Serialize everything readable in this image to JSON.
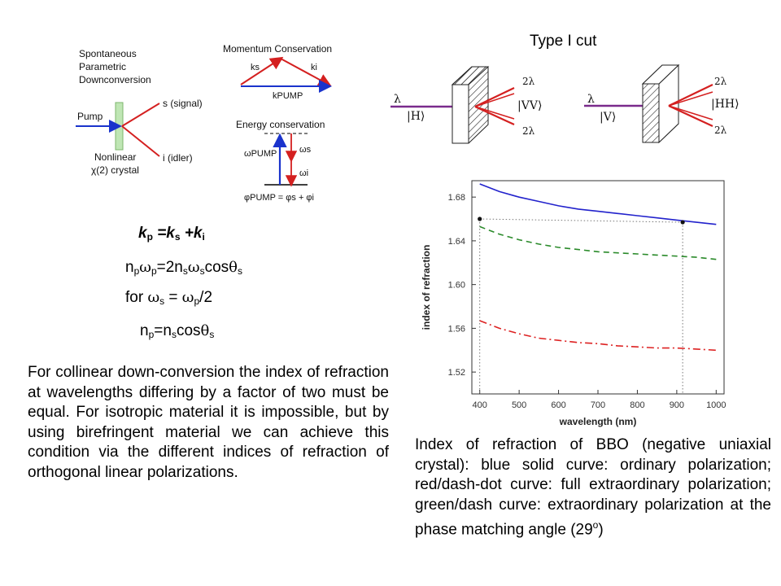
{
  "type_cut_title": "Type I cut",
  "spdc": {
    "title_lines": [
      "Spontaneous",
      "Parametric",
      "Downconversion"
    ],
    "pump": "Pump",
    "signal": "s (signal)",
    "idler": "i (idler)",
    "crystal_lines": [
      "Nonlinear",
      "χ(2) crystal"
    ],
    "momentum_title": "Momentum Conservation",
    "ks": "ks",
    "ki": "ki",
    "kpump": "kPUMP",
    "energy_title": "Energy conservation",
    "omega_pump": "ωPUMP",
    "omega_s": "ωs",
    "omega_i": "ωi",
    "phase_eq": "φPUMP = φs + φi"
  },
  "crystals": {
    "left": {
      "in_lambda": "λ",
      "in_state": "|H⟩",
      "out_state": "|VV⟩",
      "out_top": "2λ",
      "out_bottom": "2λ"
    },
    "right": {
      "in_lambda": "λ",
      "in_state": "|V⟩",
      "out_state": "|HH⟩",
      "out_top": "2λ",
      "out_bottom": "2λ"
    }
  },
  "equations": {
    "eq1": {
      "k": "k",
      "p": "p",
      "eqks": " =k",
      "s": "s",
      "plus": " +k",
      "i": "i"
    },
    "eq2": {
      "n1": "n",
      "p1": "p",
      "w1": "ω",
      "p2": "p",
      "rest": "=2n",
      "s1": "s",
      "w2": "ω",
      "s2": "s",
      "cos": "cos",
      "th": "θ",
      "s3": "s"
    },
    "eq3": {
      "for": "for ",
      "w1": "ω",
      "s": "s",
      "eq": " = ",
      "w2": "ω",
      "p": "p",
      "div": "/2"
    },
    "eq4": {
      "n1": "n",
      "p": "p",
      "eq": "=n",
      "s1": "s",
      "cos": "cos",
      "th": "θ",
      "s2": "s"
    }
  },
  "left_paragraph": "For collinear down-conversion the index of refraction at wavelengths differing by a factor of two must be equal. For isotropic material it is impossible, but by using birefringent material we can achieve this condition via the different indices of refraction of orthogonal linear polarizations.",
  "right_paragraph": {
    "text": "Index of refraction of BBO (negative uniaxial crystal): blue solid curve: ordinary polarization; red/dash-dot curve: full extraordinary polarization; green/dash curve: extraordinary polarization at the phase matching angle (29",
    "sup": "o",
    "tail": ")"
  },
  "chart_data": {
    "type": "line",
    "xlabel": "wavelength (nm)",
    "ylabel": "index of refraction",
    "xlim": [
      380,
      1020
    ],
    "ylim": [
      1.5,
      1.695
    ],
    "x_ticks": [
      400,
      500,
      600,
      700,
      800,
      900,
      1000
    ],
    "y_ticks": [
      1.52,
      1.56,
      1.6,
      1.64,
      1.68
    ],
    "grid": false,
    "series": [
      {
        "style": "solid",
        "color": "#2222cc",
        "x": [
          400,
          450,
          500,
          550,
          600,
          650,
          700,
          750,
          800,
          850,
          900,
          950,
          1000
        ],
        "y": [
          1.692,
          1.685,
          1.68,
          1.676,
          1.672,
          1.669,
          1.667,
          1.665,
          1.663,
          1.661,
          1.659,
          1.657,
          1.655
        ]
      },
      {
        "style": "dash",
        "color": "#2a8a2a",
        "x": [
          400,
          450,
          500,
          550,
          600,
          650,
          700,
          750,
          800,
          850,
          900,
          950,
          1000
        ],
        "y": [
          1.653,
          1.646,
          1.641,
          1.637,
          1.634,
          1.632,
          1.63,
          1.629,
          1.628,
          1.627,
          1.626,
          1.625,
          1.623
        ]
      },
      {
        "style": "dashdot",
        "color": "#dd2222",
        "x": [
          400,
          450,
          500,
          550,
          600,
          650,
          700,
          750,
          800,
          850,
          900,
          950,
          1000
        ],
        "y": [
          1.567,
          1.56,
          1.555,
          1.551,
          1.549,
          1.547,
          1.546,
          1.544,
          1.543,
          1.542,
          1.542,
          1.541,
          1.54
        ]
      }
    ],
    "markers": [
      {
        "x": 400,
        "y": 1.66
      },
      {
        "x": 915,
        "y": 1.657
      }
    ]
  }
}
